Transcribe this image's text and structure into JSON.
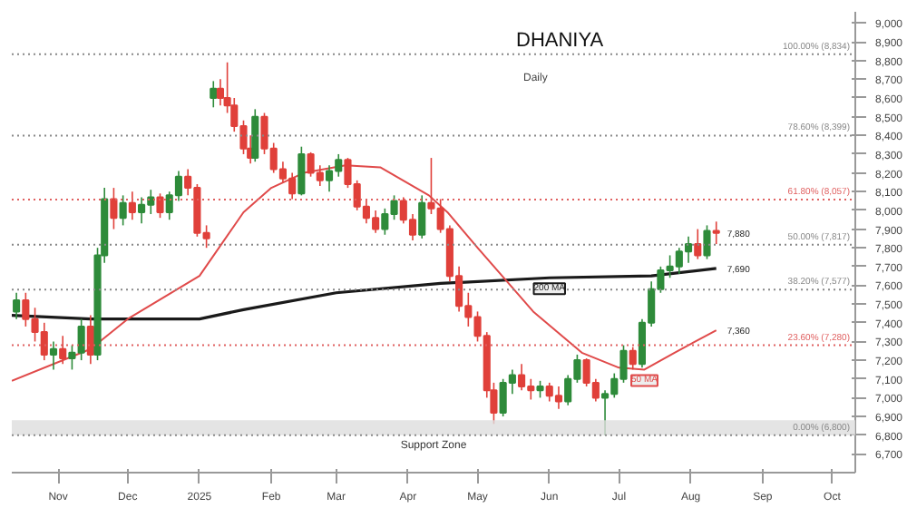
{
  "chart_data": {
    "type": "candlestick",
    "title": "DHANIYA",
    "subtitle": "Daily",
    "x": [
      "2024-10-14",
      "2024-10-18",
      "2024-10-22",
      "2024-10-26",
      "2024-10-30",
      "2024-11-03",
      "2024-11-07",
      "2024-11-11",
      "2024-11-15",
      "2024-11-18",
      "2024-11-21",
      "2024-11-25",
      "2024-11-29",
      "2024-12-03",
      "2024-12-07",
      "2024-12-11",
      "2024-12-15",
      "2024-12-19",
      "2024-12-23",
      "2024-12-27",
      "2024-12-31",
      "2025-01-04",
      "2025-01-07",
      "2025-01-10",
      "2025-01-13",
      "2025-01-16",
      "2025-01-20",
      "2025-01-23",
      "2025-01-25",
      "2025-01-29",
      "2025-02-02",
      "2025-02-06",
      "2025-02-10",
      "2025-02-14",
      "2025-02-18",
      "2025-02-22",
      "2025-02-26",
      "2025-03-02",
      "2025-03-06",
      "2025-03-10",
      "2025-03-14",
      "2025-03-18",
      "2025-03-22",
      "2025-03-26",
      "2025-03-30",
      "2025-04-03",
      "2025-04-07",
      "2025-04-11",
      "2025-04-15",
      "2025-04-19",
      "2025-04-23",
      "2025-04-27",
      "2025-05-01",
      "2025-05-05",
      "2025-05-08",
      "2025-05-12",
      "2025-05-16",
      "2025-05-20",
      "2025-05-24",
      "2025-05-28",
      "2025-06-01",
      "2025-06-05",
      "2025-06-09",
      "2025-06-13",
      "2025-06-17",
      "2025-06-21",
      "2025-06-25",
      "2025-06-29",
      "2025-07-03",
      "2025-07-07",
      "2025-07-11",
      "2025-07-15",
      "2025-07-19",
      "2025-07-23",
      "2025-07-27",
      "2025-07-31",
      "2025-08-04",
      "2025-08-08",
      "2025-08-12"
    ],
    "ohlc": [
      [
        7460,
        7560,
        7420,
        7520
      ],
      [
        7520,
        7560,
        7380,
        7420
      ],
      [
        7420,
        7480,
        7300,
        7350
      ],
      [
        7350,
        7400,
        7200,
        7230
      ],
      [
        7230,
        7300,
        7150,
        7260
      ],
      [
        7260,
        7330,
        7180,
        7210
      ],
      [
        7210,
        7280,
        7150,
        7240
      ],
      [
        7240,
        7420,
        7200,
        7380
      ],
      [
        7380,
        7440,
        7180,
        7230
      ],
      [
        7230,
        7800,
        7200,
        7760
      ],
      [
        7760,
        8120,
        7720,
        8060
      ],
      [
        8060,
        8120,
        7900,
        7960
      ],
      [
        7960,
        8080,
        7920,
        8040
      ],
      [
        8040,
        8100,
        7950,
        7990
      ],
      [
        7990,
        8070,
        7930,
        8030
      ],
      [
        8030,
        8110,
        7980,
        8070
      ],
      [
        8070,
        8090,
        7960,
        7990
      ],
      [
        7990,
        8100,
        7950,
        8080
      ],
      [
        8080,
        8210,
        8050,
        8180
      ],
      [
        8180,
        8220,
        8080,
        8120
      ],
      [
        8120,
        8140,
        7860,
        7880
      ],
      [
        7880,
        7920,
        7800,
        7850
      ],
      [
        8600,
        8690,
        8550,
        8650
      ],
      [
        8650,
        8700,
        8560,
        8600
      ],
      [
        8600,
        8790,
        8520,
        8560
      ],
      [
        8560,
        8600,
        8420,
        8450
      ],
      [
        8450,
        8480,
        8300,
        8330
      ],
      [
        8330,
        8400,
        8250,
        8280
      ],
      [
        8280,
        8540,
        8260,
        8500
      ],
      [
        8500,
        8520,
        8300,
        8330
      ],
      [
        8330,
        8360,
        8200,
        8220
      ],
      [
        8220,
        8260,
        8150,
        8170
      ],
      [
        8170,
        8200,
        8060,
        8090
      ],
      [
        8090,
        8340,
        8080,
        8300
      ],
      [
        8300,
        8310,
        8180,
        8200
      ],
      [
        8200,
        8240,
        8130,
        8160
      ],
      [
        8160,
        8240,
        8100,
        8210
      ],
      [
        8210,
        8300,
        8180,
        8270
      ],
      [
        8270,
        8280,
        8120,
        8140
      ],
      [
        8140,
        8160,
        8000,
        8020
      ],
      [
        8020,
        8060,
        7930,
        7960
      ],
      [
        7960,
        8000,
        7880,
        7900
      ],
      [
        7900,
        8010,
        7870,
        7980
      ],
      [
        7980,
        8080,
        7950,
        8050
      ],
      [
        8050,
        8070,
        7930,
        7950
      ],
      [
        7950,
        7980,
        7840,
        7870
      ],
      [
        7870,
        8080,
        7850,
        8040
      ],
      [
        8040,
        8280,
        7980,
        8010
      ],
      [
        8010,
        8060,
        7880,
        7900
      ],
      [
        7900,
        7920,
        7620,
        7650
      ],
      [
        7650,
        7700,
        7460,
        7490
      ],
      [
        7490,
        7560,
        7380,
        7430
      ],
      [
        7430,
        7460,
        7300,
        7330
      ],
      [
        7330,
        7350,
        7000,
        7040
      ],
      [
        7040,
        7080,
        6860,
        6920
      ],
      [
        6920,
        7100,
        6900,
        7080
      ],
      [
        7080,
        7150,
        7020,
        7120
      ],
      [
        7120,
        7180,
        7040,
        7060
      ],
      [
        7060,
        7100,
        6990,
        7040
      ],
      [
        7040,
        7090,
        7000,
        7060
      ],
      [
        7060,
        7080,
        6980,
        7010
      ],
      [
        7010,
        7060,
        6940,
        6980
      ],
      [
        6980,
        7120,
        6960,
        7100
      ],
      [
        7100,
        7230,
        7080,
        7200
      ],
      [
        7200,
        7210,
        7060,
        7080
      ],
      [
        7080,
        7100,
        6980,
        7000
      ],
      [
        7000,
        7040,
        6800,
        7020
      ],
      [
        7020,
        7130,
        7000,
        7100
      ],
      [
        7100,
        7280,
        7080,
        7250
      ],
      [
        7250,
        7270,
        7150,
        7180
      ],
      [
        7180,
        7420,
        7160,
        7400
      ],
      [
        7400,
        7620,
        7380,
        7580
      ],
      [
        7580,
        7700,
        7560,
        7680
      ],
      [
        7680,
        7760,
        7640,
        7700
      ],
      [
        7700,
        7800,
        7660,
        7780
      ],
      [
        7780,
        7860,
        7720,
        7820
      ],
      [
        7820,
        7900,
        7740,
        7760
      ],
      [
        7760,
        7920,
        7740,
        7890
      ],
      [
        7890,
        7940,
        7820,
        7880
      ]
    ],
    "colors": [
      "#2e8b3a",
      "#e0403a",
      "#e0403a",
      "#e0403a",
      "#2e8b3a",
      "#e0403a",
      "#2e8b3a",
      "#2e8b3a",
      "#e0403a",
      "#2e8b3a",
      "#2e8b3a",
      "#e0403a",
      "#2e8b3a",
      "#e0403a",
      "#2e8b3a",
      "#2e8b3a",
      "#e0403a",
      "#2e8b3a",
      "#2e8b3a",
      "#e0403a",
      "#e0403a",
      "#e0403a",
      "#2e8b3a",
      "#e0403a",
      "#e0403a",
      "#e0403a",
      "#e0403a",
      "#e0403a",
      "#2e8b3a",
      "#e0403a",
      "#e0403a",
      "#e0403a",
      "#e0403a",
      "#2e8b3a",
      "#e0403a",
      "#e0403a",
      "#2e8b3a",
      "#2e8b3a",
      "#e0403a",
      "#e0403a",
      "#e0403a",
      "#e0403a",
      "#2e8b3a",
      "#2e8b3a",
      "#e0403a",
      "#e0403a",
      "#2e8b3a",
      "#e0403a",
      "#e0403a",
      "#e0403a",
      "#e0403a",
      "#e0403a",
      "#e0403a",
      "#e0403a",
      "#e0403a",
      "#2e8b3a",
      "#2e8b3a",
      "#e0403a",
      "#e0403a",
      "#2e8b3a",
      "#e0403a",
      "#e0403a",
      "#2e8b3a",
      "#2e8b3a",
      "#e0403a",
      "#e0403a",
      "#2e8b3a",
      "#2e8b3a",
      "#2e8b3a",
      "#e0403a",
      "#2e8b3a",
      "#2e8b3a",
      "#2e8b3a",
      "#2e8b3a",
      "#2e8b3a",
      "#2e8b3a",
      "#e0403a",
      "#2e8b3a",
      "#e0403a"
    ],
    "series": [
      {
        "name": "200 MA",
        "type": "line",
        "color": "#1a1a1a",
        "x": [
          "2024-10-12",
          "2024-11-15",
          "2025-01-01",
          "2025-01-20",
          "2025-03-01",
          "2025-04-15",
          "2025-06-01",
          "2025-07-15",
          "2025-08-12"
        ],
        "values": [
          7440,
          7420,
          7420,
          7470,
          7560,
          7610,
          7640,
          7650,
          7690
        ]
      },
      {
        "name": "50 MA",
        "type": "line",
        "color": "#e04a4a",
        "x": [
          "2024-10-12",
          "2024-11-15",
          "2024-12-01",
          "2025-01-01",
          "2025-01-20",
          "2025-02-01",
          "2025-02-15",
          "2025-03-05",
          "2025-03-20",
          "2025-04-10",
          "2025-04-18",
          "2025-05-01",
          "2025-05-25",
          "2025-06-15",
          "2025-07-01",
          "2025-07-12",
          "2025-07-25",
          "2025-08-12"
        ],
        "values": [
          7090,
          7260,
          7420,
          7650,
          7990,
          8120,
          8200,
          8240,
          8230,
          8080,
          7990,
          7800,
          7460,
          7240,
          7160,
          7150,
          7240,
          7360
        ]
      }
    ],
    "xlim": [
      "2024-10-12",
      "2025-10-11"
    ],
    "xticks": [
      {
        "value": "2024-11-01",
        "label": "Nov"
      },
      {
        "value": "2024-12-01",
        "label": "Dec"
      },
      {
        "value": "2025-01-01",
        "label": "2025"
      },
      {
        "value": "2025-02-01",
        "label": "Feb"
      },
      {
        "value": "2025-03-01",
        "label": "Mar"
      },
      {
        "value": "2025-04-01",
        "label": "Apr"
      },
      {
        "value": "2025-05-01",
        "label": "May"
      },
      {
        "value": "2025-06-01",
        "label": "Jun"
      },
      {
        "value": "2025-07-01",
        "label": "Jul"
      },
      {
        "value": "2025-08-01",
        "label": "Aug"
      },
      {
        "value": "2025-09-01",
        "label": "Sep"
      },
      {
        "value": "2025-10-01",
        "label": "Oct"
      }
    ],
    "ylim": [
      6600,
      9060
    ],
    "yticks": [
      {
        "value": 6700,
        "label": "6,700"
      },
      {
        "value": 6800,
        "label": "6,800"
      },
      {
        "value": 6900,
        "label": "6,900"
      },
      {
        "value": 7000,
        "label": "7,000"
      },
      {
        "value": 7100,
        "label": "7,100"
      },
      {
        "value": 7200,
        "label": "7,200"
      },
      {
        "value": 7300,
        "label": "7,300"
      },
      {
        "value": 7400,
        "label": "7,400"
      },
      {
        "value": 7500,
        "label": "7,500"
      },
      {
        "value": 7600,
        "label": "7,600"
      },
      {
        "value": 7700,
        "label": "7,700"
      },
      {
        "value": 7800,
        "label": "7,800"
      },
      {
        "value": 7900,
        "label": "7,900"
      },
      {
        "value": 8000,
        "label": "8,000"
      },
      {
        "value": 8100,
        "label": "8,100"
      },
      {
        "value": 8200,
        "label": "8,200"
      },
      {
        "value": 8300,
        "label": "8,300"
      },
      {
        "value": 8400,
        "label": "8,400"
      },
      {
        "value": 8500,
        "label": "8,500"
      },
      {
        "value": 8600,
        "label": "8,600"
      },
      {
        "value": 8700,
        "label": "8,700"
      },
      {
        "value": 8800,
        "label": "8,800"
      },
      {
        "value": 8900,
        "label": "8,900"
      },
      {
        "value": 9000,
        "label": "9,000"
      }
    ],
    "ref_lines": [
      {
        "axis": "y",
        "value": 8834,
        "label": "100.00% (8,834)",
        "color": "#888888",
        "line_style": "dotted"
      },
      {
        "axis": "y",
        "value": 8399,
        "label": "78.60% (8,399)",
        "color": "#888888",
        "line_style": "dotted"
      },
      {
        "axis": "y",
        "value": 8057,
        "label": "61.80% (8,057)",
        "color": "#e06060",
        "line_style": "dotted"
      },
      {
        "axis": "y",
        "value": 7817,
        "label": "50.00% (7,817)",
        "color": "#888888",
        "line_style": "dotted"
      },
      {
        "axis": "y",
        "value": 7577,
        "label": "38.20% (7,577)",
        "color": "#888888",
        "line_style": "dotted"
      },
      {
        "axis": "y",
        "value": 7280,
        "label": "23.60% (7,280)",
        "color": "#e06060",
        "line_style": "dotted"
      },
      {
        "axis": "y",
        "value": 6800,
        "label": "0.00% (6,800)",
        "color": "#888888",
        "line_style": "dotted"
      }
    ],
    "bands": [
      {
        "axis": "y",
        "from": 6800,
        "to": 6880,
        "label": "Support Zone",
        "color": "#dddddd"
      }
    ],
    "annotations": [
      {
        "text": "7,880",
        "x": "2025-08-12",
        "y": 7880
      },
      {
        "text": "7,690",
        "x": "2025-08-12",
        "y": 7690
      },
      {
        "text": "7,360",
        "x": "2025-08-12",
        "y": 7360
      }
    ],
    "grid": false
  }
}
